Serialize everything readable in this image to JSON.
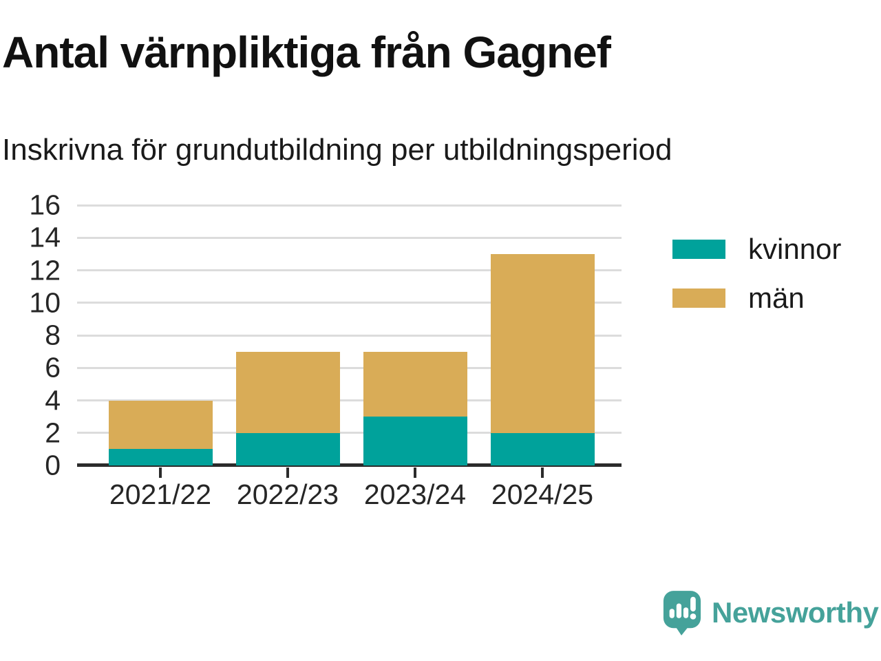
{
  "chart_data": {
    "type": "bar",
    "stacked": true,
    "title": "Antal värnpliktiga från Gagnef",
    "subtitle": "Inskrivna för grundutbildning per utbildningsperiod",
    "categories": [
      "2021/22",
      "2022/23",
      "2023/24",
      "2024/25"
    ],
    "series": [
      {
        "name": "kvinnor",
        "color": "#00A29B",
        "values": [
          1,
          2,
          3,
          2
        ]
      },
      {
        "name": "män",
        "color": "#D9AC57",
        "values": [
          3,
          5,
          4,
          11
        ]
      }
    ],
    "totals": [
      4,
      7,
      7,
      13
    ],
    "ylim": [
      0,
      16
    ],
    "yticks": [
      0,
      2,
      4,
      6,
      8,
      10,
      12,
      14,
      16
    ],
    "xlabel": "",
    "ylabel": "",
    "grid": true,
    "legend_position": "right-of-plot"
  },
  "style": {
    "axis_color": "#2b2b2b",
    "gridline_color": "#dcdcdc",
    "title_color": "#111111",
    "text_color": "#1a1a1a"
  },
  "branding": {
    "logo_text": "Newsworthy",
    "logo_color": "#45A29A",
    "logo_icon": "speech-bubble-with-bar-chart-and-exclamation"
  }
}
